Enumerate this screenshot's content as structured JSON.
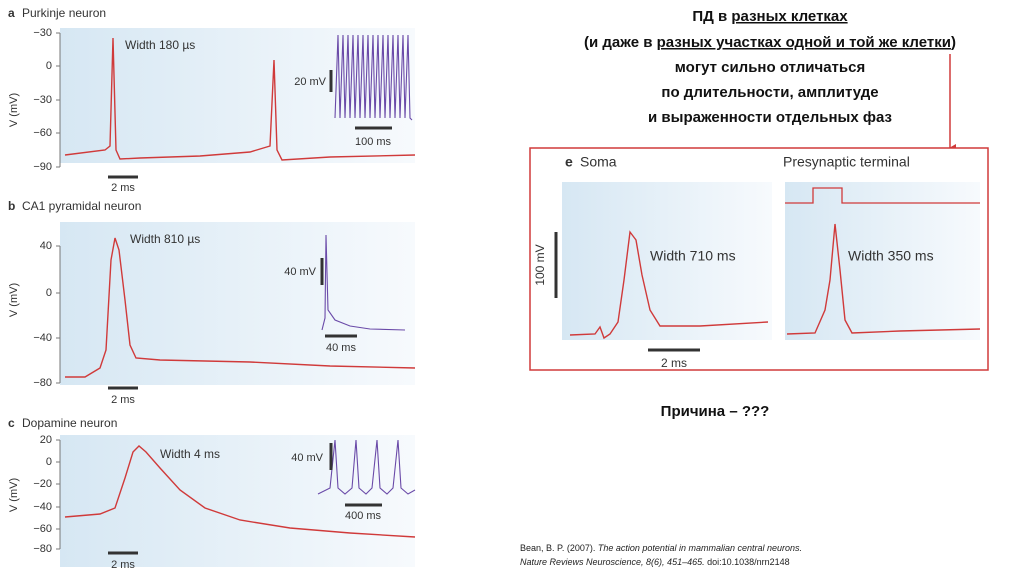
{
  "panels": [
    {
      "letter": "a",
      "title": "Purkinje neuron",
      "y_label": "V (mV)",
      "ticks": [
        "−30",
        "0",
        "−30",
        "−60",
        "−90"
      ],
      "width": "Width 180 µs",
      "inset_v": "20 mV",
      "inset_t": "100 ms",
      "scale_t": "2 ms"
    },
    {
      "letter": "b",
      "title": "CA1 pyramidal neuron",
      "y_label": "V (mV)",
      "ticks": [
        "40",
        "0",
        "−40",
        "−80"
      ],
      "width": "Width 810 µs",
      "inset_v": "40 mV",
      "inset_t": "40 ms",
      "scale_t": "2 ms"
    },
    {
      "letter": "c",
      "title": "Dopamine neuron",
      "y_label": "V (mV)",
      "ticks": [
        "20",
        "0",
        "−20",
        "−40",
        "−60",
        "−80"
      ],
      "width": "Width 4 ms",
      "inset_v": "40 mV",
      "inset_t": "400 ms",
      "scale_t": "2 ms"
    }
  ],
  "heading": {
    "line1": [
      "ПД в ",
      "разных клетках"
    ],
    "line2": [
      "(и даже в ",
      "разных участках одной и той же клетки",
      ")"
    ],
    "line3": "могут сильно отличаться",
    "line4": "по длительности, амплитуде",
    "line5": "и выраженности отдельных фаз"
  },
  "box": {
    "letter": "e",
    "soma": "Soma",
    "terminal": "Presynaptic terminal",
    "scale_v": "100 mV",
    "scale_t": "2 ms",
    "soma_width": "Width 710 ms",
    "terminal_width": "Width 350 ms"
  },
  "question": "Причина – ???",
  "reference": {
    "line1": [
      "Bean, B. P. (2007). ",
      "The action potential in mammalian central neurons."
    ],
    "line2": [
      "Nature Reviews Neuroscience, 8(6), 451–465.",
      " doi:10.1038/nrn2148"
    ]
  }
}
